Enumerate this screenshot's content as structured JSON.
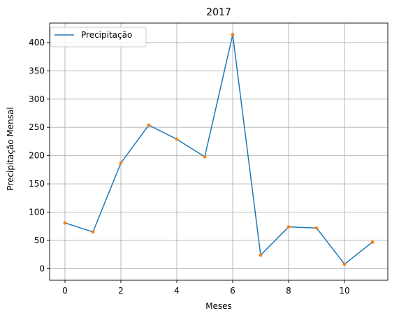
{
  "chart_data": {
    "type": "line",
    "title": "2017",
    "xlabel": "Meses",
    "ylabel": "Precipitação Mensal",
    "xlim": [
      -0.55,
      11.55
    ],
    "ylim": [
      -20.5,
      434.5
    ],
    "xticks": [
      0,
      2,
      4,
      6,
      8,
      10
    ],
    "yticks": [
      0,
      50,
      100,
      150,
      200,
      250,
      300,
      350,
      400
    ],
    "grid": true,
    "legend_position": "upper left",
    "series": [
      {
        "name": "Precipitação",
        "color": "#1f77b4",
        "marker_color": "#ff7f0e",
        "x": [
          0,
          1,
          2,
          3,
          4,
          5,
          6,
          7,
          8,
          9,
          10,
          11
        ],
        "y": [
          81,
          65,
          187,
          254,
          229,
          198,
          414,
          24,
          74,
          72,
          8,
          47
        ]
      }
    ]
  }
}
